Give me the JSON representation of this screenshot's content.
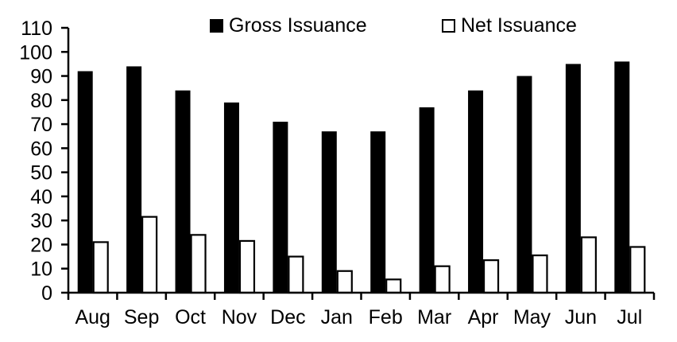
{
  "chart_data": {
    "type": "bar",
    "categories": [
      "Aug",
      "Sep",
      "Oct",
      "Nov",
      "Dec",
      "Jan",
      "Feb",
      "Mar",
      "Apr",
      "May",
      "Jun",
      "Jul"
    ],
    "series": [
      {
        "name": "Gross Issuance",
        "fill": "#000000",
        "stroke": "#000000",
        "values": [
          92,
          94,
          84,
          79,
          71,
          67,
          67,
          77,
          84,
          90,
          95,
          96
        ]
      },
      {
        "name": "Net Issuance",
        "fill": "#ffffff",
        "stroke": "#000000",
        "values": [
          21,
          31.5,
          24,
          21.5,
          15,
          9,
          5.5,
          11,
          13.5,
          15.5,
          23,
          19
        ]
      }
    ],
    "title": "",
    "xlabel": "",
    "ylabel": "",
    "ylim": [
      0,
      110
    ],
    "yticks": [
      0,
      10,
      20,
      30,
      40,
      50,
      60,
      70,
      80,
      90,
      100,
      110
    ],
    "grid": false,
    "legend_position": "top",
    "axis_color": "#000000",
    "text_color": "#000000",
    "background": "#ffffff"
  },
  "legend": {
    "items": [
      {
        "label": "Gross Issuance",
        "swatch": "filled-black-square"
      },
      {
        "label": "Net Issuance",
        "swatch": "outlined-white-square"
      }
    ]
  }
}
